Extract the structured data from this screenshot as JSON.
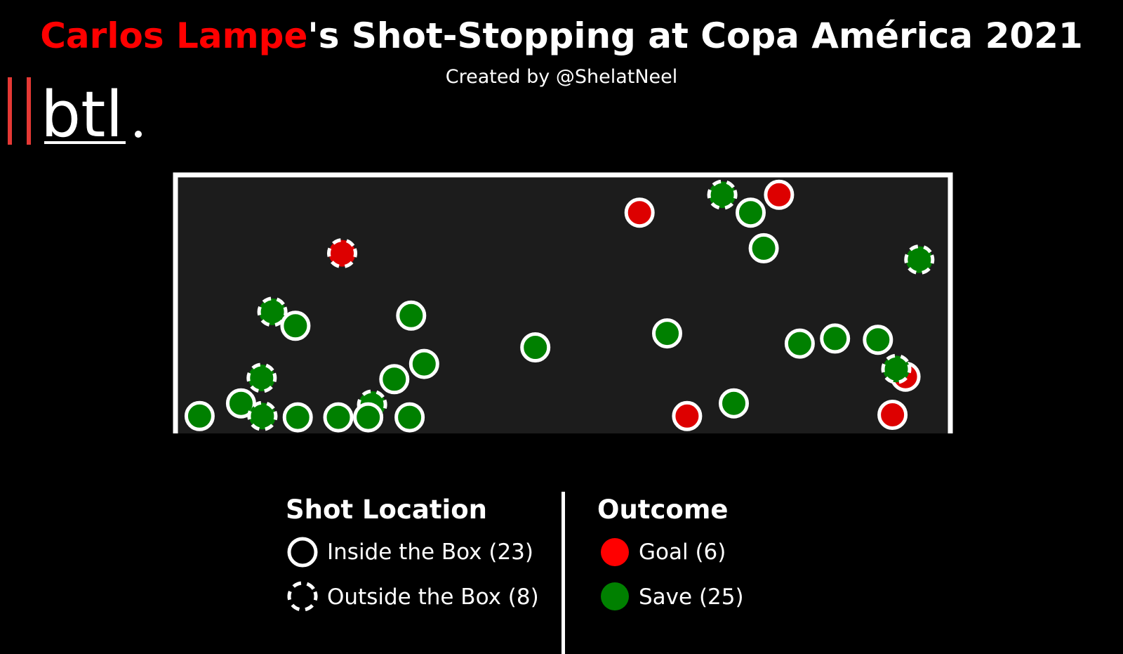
{
  "title": {
    "highlight": "Carlos Lampe",
    "rest": "'s Shot-Stopping at Copa América 2021"
  },
  "subtitle": "Created by @ShelatNeel",
  "logo": {
    "text": "btl",
    "accent_color": "#e53935"
  },
  "colors": {
    "background": "#000000",
    "goal_area": "#1c1c1c",
    "goal": "#ff0000",
    "goal_marker": "#dd0000",
    "save": "#008000",
    "outline": "#ffffff"
  },
  "legend": {
    "location": {
      "title": "Shot Location",
      "inside": "Inside the Box (23)",
      "outside": "Outside the Box (8)"
    },
    "outcome": {
      "title": "Outcome",
      "goal": "Goal (6)",
      "save": "Save (25)"
    }
  },
  "chart_data": {
    "type": "scatter",
    "xlim": [
      0,
      100
    ],
    "ylim": [
      0,
      100
    ],
    "grid": false,
    "legend_placement": "bottom",
    "points": [
      {
        "x": 60.0,
        "y": 86.0,
        "outcome": "Goal",
        "location": "Inside the Box"
      },
      {
        "x": 78.2,
        "y": 93.0,
        "outcome": "Goal",
        "location": "Inside the Box"
      },
      {
        "x": 21.2,
        "y": 70.0,
        "outcome": "Goal",
        "location": "Outside the Box"
      },
      {
        "x": 66.2,
        "y": 6.0,
        "outcome": "Goal",
        "location": "Inside the Box"
      },
      {
        "x": 94.7,
        "y": 21.5,
        "outcome": "Goal",
        "location": "Inside the Box"
      },
      {
        "x": 93.0,
        "y": 6.5,
        "outcome": "Goal",
        "location": "Inside the Box"
      },
      {
        "x": 70.8,
        "y": 93.0,
        "outcome": "Save",
        "location": "Outside the Box"
      },
      {
        "x": 74.5,
        "y": 86.0,
        "outcome": "Save",
        "location": "Inside the Box"
      },
      {
        "x": 76.2,
        "y": 72.0,
        "outcome": "Save",
        "location": "Inside the Box"
      },
      {
        "x": 96.5,
        "y": 67.5,
        "outcome": "Save",
        "location": "Outside the Box"
      },
      {
        "x": 12.1,
        "y": 47.0,
        "outcome": "Save",
        "location": "Outside the Box"
      },
      {
        "x": 15.1,
        "y": 41.5,
        "outcome": "Save",
        "location": "Inside the Box"
      },
      {
        "x": 30.2,
        "y": 45.5,
        "outcome": "Save",
        "location": "Inside the Box"
      },
      {
        "x": 46.4,
        "y": 33.0,
        "outcome": "Save",
        "location": "Inside the Box"
      },
      {
        "x": 63.6,
        "y": 38.5,
        "outcome": "Save",
        "location": "Inside the Box"
      },
      {
        "x": 80.9,
        "y": 34.5,
        "outcome": "Save",
        "location": "Inside the Box"
      },
      {
        "x": 85.5,
        "y": 36.5,
        "outcome": "Save",
        "location": "Inside the Box"
      },
      {
        "x": 91.1,
        "y": 36.0,
        "outcome": "Save",
        "location": "Inside the Box"
      },
      {
        "x": 31.9,
        "y": 26.5,
        "outcome": "Save",
        "location": "Inside the Box"
      },
      {
        "x": 28.0,
        "y": 20.5,
        "outcome": "Save",
        "location": "Inside the Box"
      },
      {
        "x": 10.7,
        "y": 21.0,
        "outcome": "Save",
        "location": "Outside the Box"
      },
      {
        "x": 93.5,
        "y": 24.5,
        "outcome": "Save",
        "location": "Outside the Box"
      },
      {
        "x": 2.6,
        "y": 6.0,
        "outcome": "Save",
        "location": "Inside the Box"
      },
      {
        "x": 8.0,
        "y": 11.0,
        "outcome": "Save",
        "location": "Inside the Box"
      },
      {
        "x": 10.8,
        "y": 6.0,
        "outcome": "Save",
        "location": "Outside the Box"
      },
      {
        "x": 15.4,
        "y": 5.5,
        "outcome": "Save",
        "location": "Inside the Box"
      },
      {
        "x": 20.7,
        "y": 5.5,
        "outcome": "Save",
        "location": "Inside the Box"
      },
      {
        "x": 25.1,
        "y": 10.5,
        "outcome": "Save",
        "location": "Outside the Box"
      },
      {
        "x": 24.6,
        "y": 5.5,
        "outcome": "Save",
        "location": "Inside the Box"
      },
      {
        "x": 30.0,
        "y": 5.5,
        "outcome": "Save",
        "location": "Inside the Box"
      },
      {
        "x": 72.3,
        "y": 11.0,
        "outcome": "Save",
        "location": "Inside the Box"
      }
    ]
  }
}
